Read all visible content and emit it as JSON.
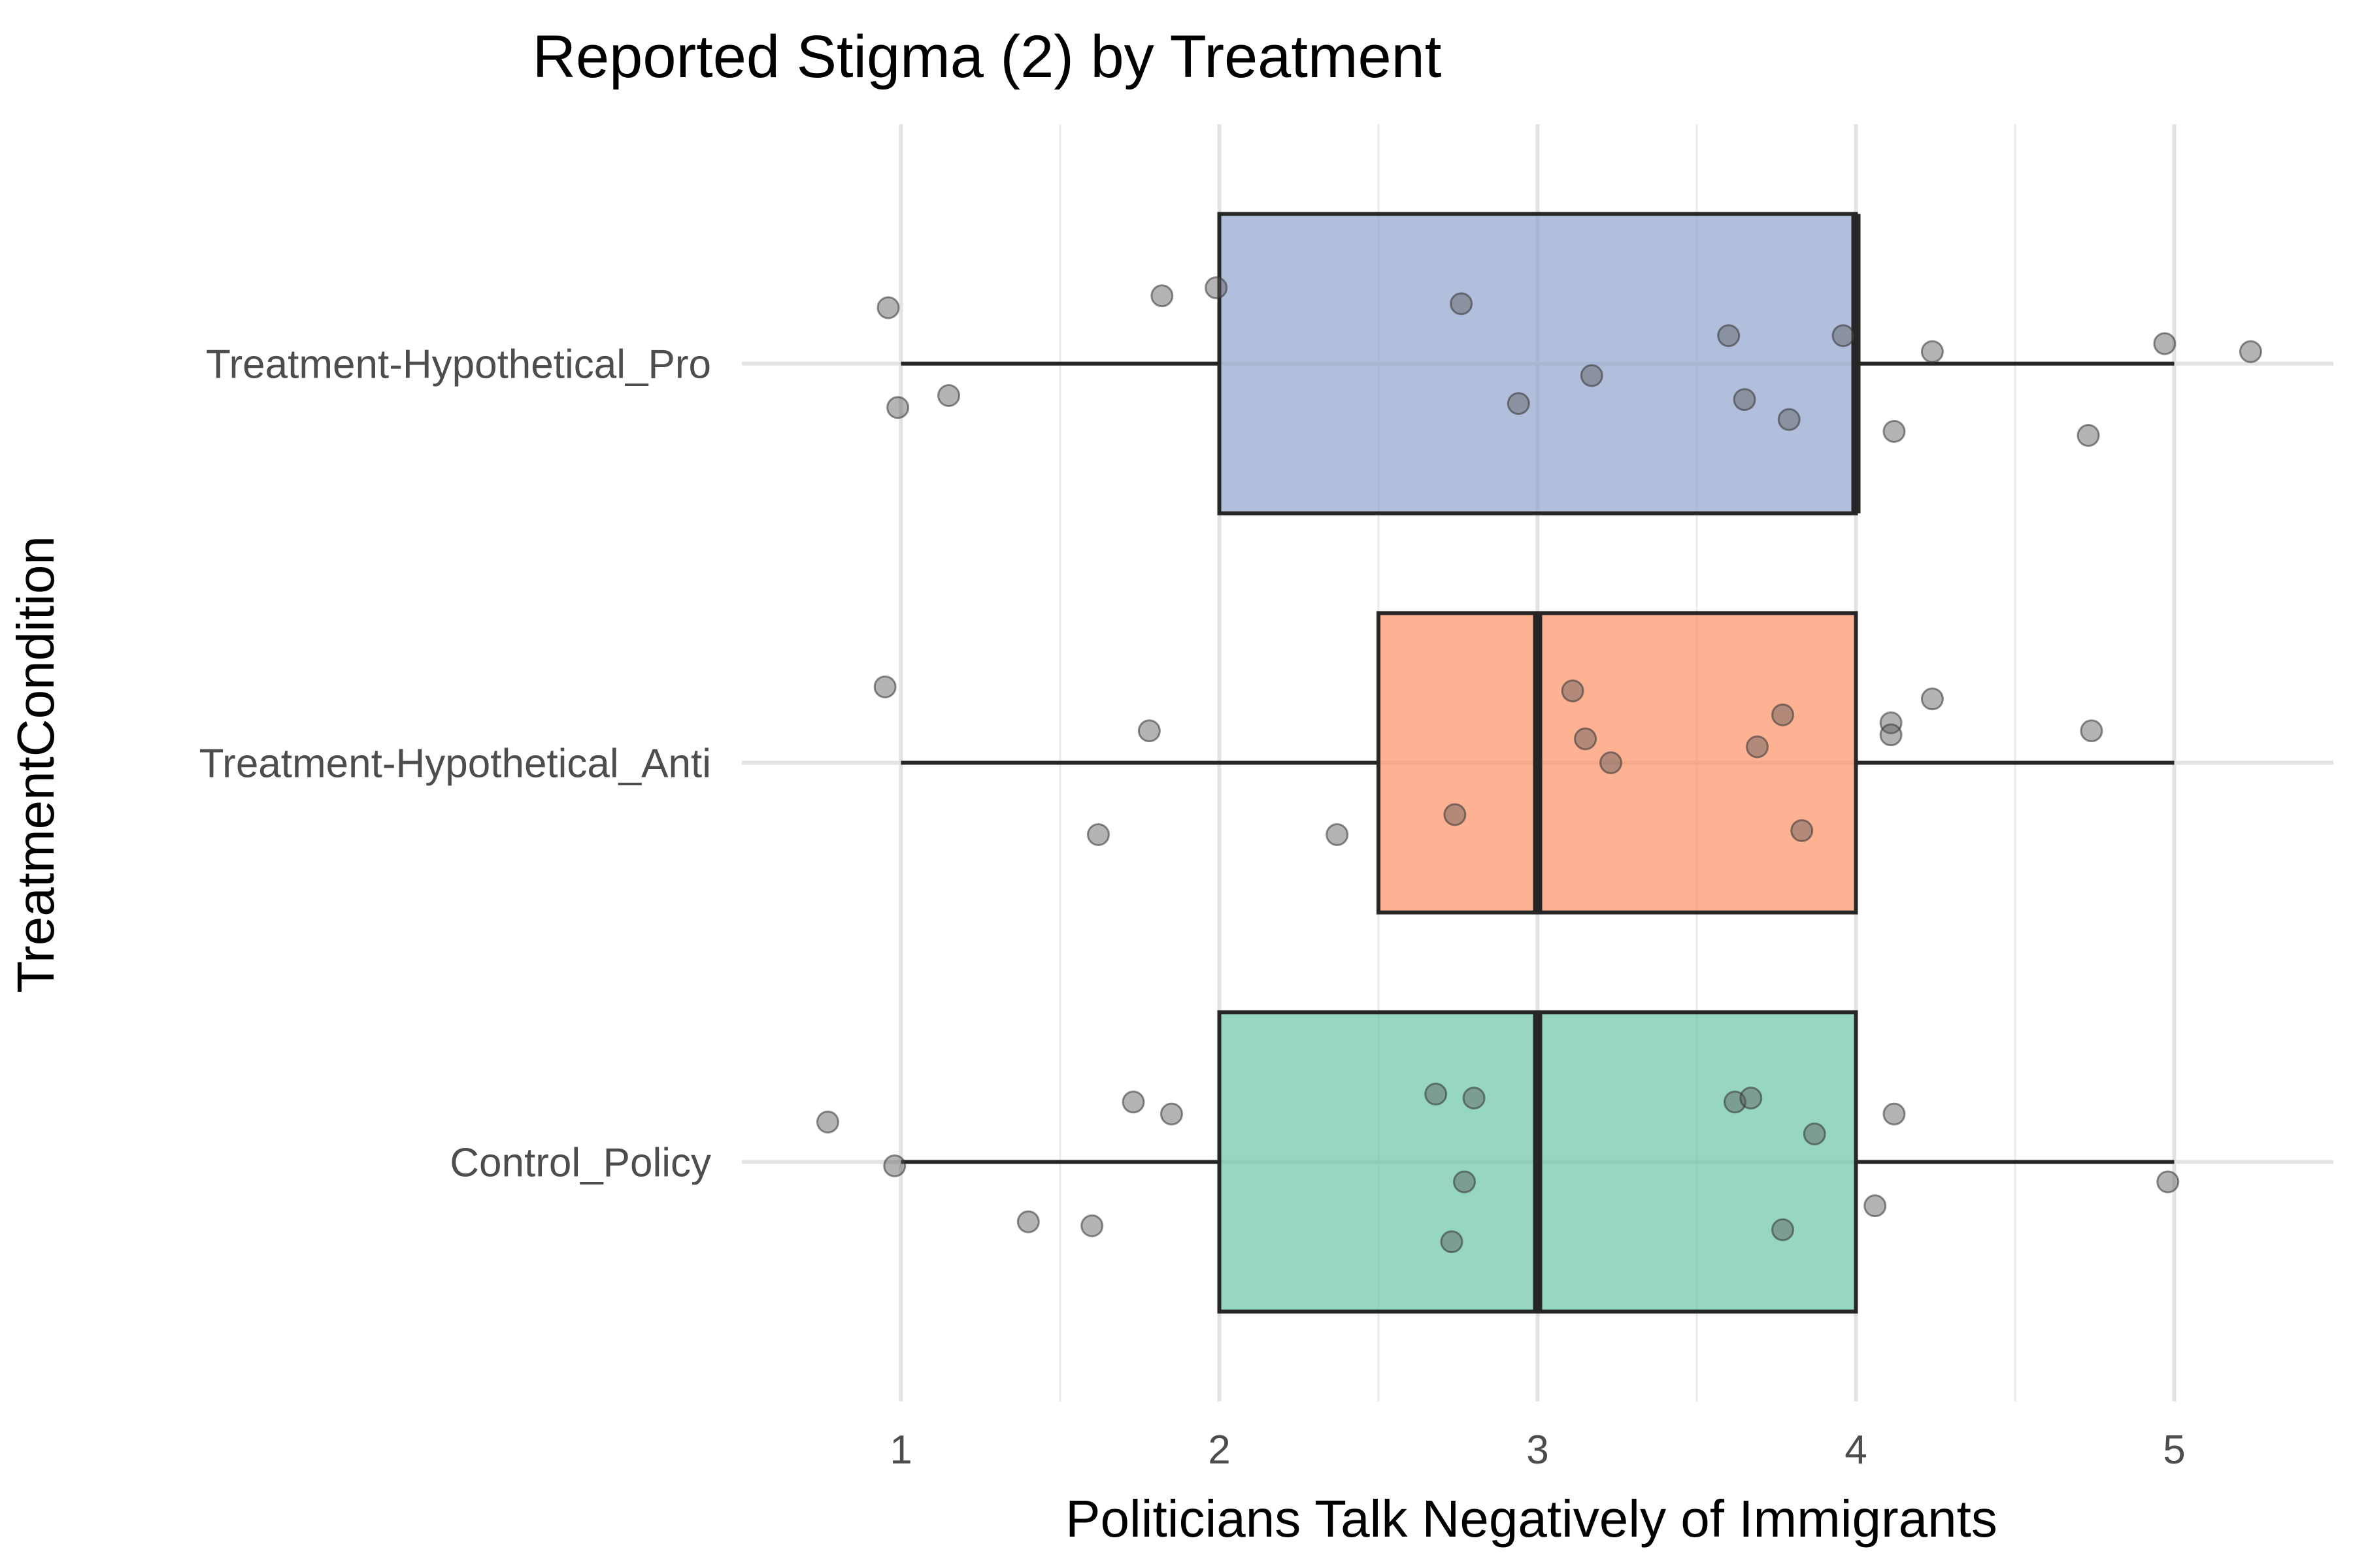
{
  "chart_data": {
    "type": "boxplot",
    "orientation": "horizontal",
    "title": "Reported Stigma (2) by Treatment",
    "xlabel": "Politicians Talk Negatively of Immigrants",
    "ylabel": "TreatmentCondition",
    "xlim": [
      0.5,
      5.5
    ],
    "x_ticks": [
      1,
      2,
      3,
      4,
      5
    ],
    "x_minor_ticks": [
      1.5,
      2.5,
      3.5,
      4.5
    ],
    "grid": true,
    "legend": "none",
    "categories": [
      "Control_Policy",
      "Treatment-Hypothetical_Anti",
      "Treatment-Hypothetical_Pro"
    ],
    "boxes": [
      {
        "category": "Control_Policy",
        "whisker_low": 1,
        "q1": 2,
        "median": 3,
        "q3": 4,
        "whisker_high": 5,
        "color": "#66c2a5",
        "points": [
          {
            "x": 0.77,
            "y": 0.1
          },
          {
            "x": 0.98,
            "y": -0.01
          },
          {
            "x": 1.4,
            "y": -0.15
          },
          {
            "x": 1.6,
            "y": -0.16
          },
          {
            "x": 1.73,
            "y": 0.15
          },
          {
            "x": 1.85,
            "y": 0.12
          },
          {
            "x": 2.68,
            "y": 0.17
          },
          {
            "x": 2.8,
            "y": 0.16
          },
          {
            "x": 2.77,
            "y": -0.05
          },
          {
            "x": 2.73,
            "y": -0.2
          },
          {
            "x": 3.62,
            "y": 0.15
          },
          {
            "x": 3.67,
            "y": 0.16
          },
          {
            "x": 3.87,
            "y": 0.07
          },
          {
            "x": 3.77,
            "y": -0.17
          },
          {
            "x": 4.06,
            "y": -0.11
          },
          {
            "x": 4.12,
            "y": 0.12
          },
          {
            "x": 4.98,
            "y": -0.05
          }
        ]
      },
      {
        "category": "Treatment-Hypothetical_Anti",
        "whisker_low": 1,
        "q1": 2.5,
        "median": 3,
        "q3": 4,
        "whisker_high": 5,
        "color": "#fc8d62",
        "points": [
          {
            "x": 0.95,
            "y": 0.19
          },
          {
            "x": 1.78,
            "y": 0.08
          },
          {
            "x": 1.62,
            "y": -0.18
          },
          {
            "x": 2.37,
            "y": -0.18
          },
          {
            "x": 2.74,
            "y": -0.13
          },
          {
            "x": 3.11,
            "y": 0.18
          },
          {
            "x": 3.15,
            "y": 0.06
          },
          {
            "x": 3.23,
            "y": 0.0
          },
          {
            "x": 3.69,
            "y": 0.04
          },
          {
            "x": 3.77,
            "y": 0.12
          },
          {
            "x": 3.83,
            "y": -0.17
          },
          {
            "x": 4.11,
            "y": 0.1
          },
          {
            "x": 4.11,
            "y": 0.07
          },
          {
            "x": 4.24,
            "y": 0.16
          },
          {
            "x": 4.74,
            "y": 0.08
          }
        ]
      },
      {
        "category": "Treatment-Hypothetical_Pro",
        "whisker_low": 1,
        "q1": 2,
        "median": 4,
        "q3": 4,
        "whisker_high": 5,
        "color": "#8da0cb",
        "points": [
          {
            "x": 0.96,
            "y": 0.14
          },
          {
            "x": 0.99,
            "y": -0.11
          },
          {
            "x": 1.15,
            "y": -0.08
          },
          {
            "x": 1.82,
            "y": 0.17
          },
          {
            "x": 1.99,
            "y": 0.19
          },
          {
            "x": 2.76,
            "y": 0.15
          },
          {
            "x": 2.94,
            "y": -0.1
          },
          {
            "x": 3.17,
            "y": -0.03
          },
          {
            "x": 3.6,
            "y": 0.07
          },
          {
            "x": 3.65,
            "y": -0.09
          },
          {
            "x": 3.79,
            "y": -0.14
          },
          {
            "x": 3.96,
            "y": 0.07
          },
          {
            "x": 4.12,
            "y": -0.17
          },
          {
            "x": 4.24,
            "y": 0.03
          },
          {
            "x": 4.73,
            "y": -0.18
          },
          {
            "x": 4.97,
            "y": 0.05
          },
          {
            "x": 5.24,
            "y": 0.03
          }
        ]
      }
    ]
  }
}
